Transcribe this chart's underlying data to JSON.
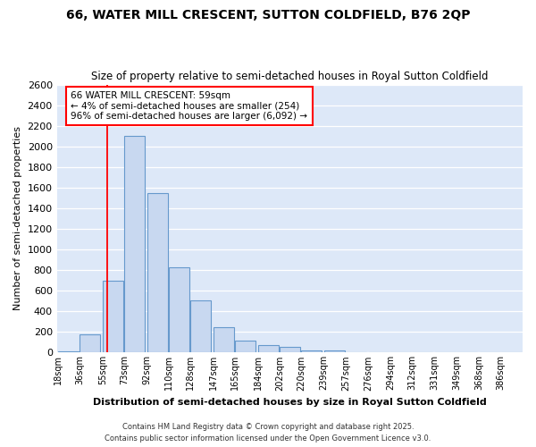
{
  "title1": "66, WATER MILL CRESCENT, SUTTON COLDFIELD, B76 2QP",
  "title2": "Size of property relative to semi-detached houses in Royal Sutton Coldfield",
  "xlabel": "Distribution of semi-detached houses by size in Royal Sutton Coldfield",
  "ylabel": "Number of semi-detached properties",
  "bins": [
    18,
    36,
    55,
    73,
    92,
    110,
    128,
    147,
    165,
    184,
    202,
    220,
    239,
    257,
    276,
    294,
    312,
    331,
    349,
    368,
    386
  ],
  "bin_labels": [
    "18sqm",
    "36sqm",
    "55sqm",
    "73sqm",
    "92sqm",
    "110sqm",
    "128sqm",
    "147sqm",
    "165sqm",
    "184sqm",
    "202sqm",
    "220sqm",
    "239sqm",
    "257sqm",
    "276sqm",
    "294sqm",
    "312sqm",
    "331sqm",
    "349sqm",
    "368sqm",
    "386sqm"
  ],
  "heights": [
    15,
    175,
    700,
    2100,
    1550,
    830,
    510,
    250,
    120,
    70,
    55,
    20,
    20,
    0,
    0,
    0,
    0,
    0,
    0,
    0,
    0
  ],
  "bar_color": "#c8d8f0",
  "bar_edge_color": "#6699cc",
  "redline_x": 59,
  "annotation_title": "66 WATER MILL CRESCENT: 59sqm",
  "annotation_line1": "← 4% of semi-detached houses are smaller (254)",
  "annotation_line2": "96% of semi-detached houses are larger (6,092) →",
  "ylim": [
    0,
    2600
  ],
  "yticks": [
    0,
    200,
    400,
    600,
    800,
    1000,
    1200,
    1400,
    1600,
    1800,
    2000,
    2200,
    2400,
    2600
  ],
  "bg_color": "#dde8f8",
  "grid_color": "#ffffff",
  "footer1": "Contains HM Land Registry data © Crown copyright and database right 2025.",
  "footer2": "Contains public sector information licensed under the Open Government Licence v3.0."
}
